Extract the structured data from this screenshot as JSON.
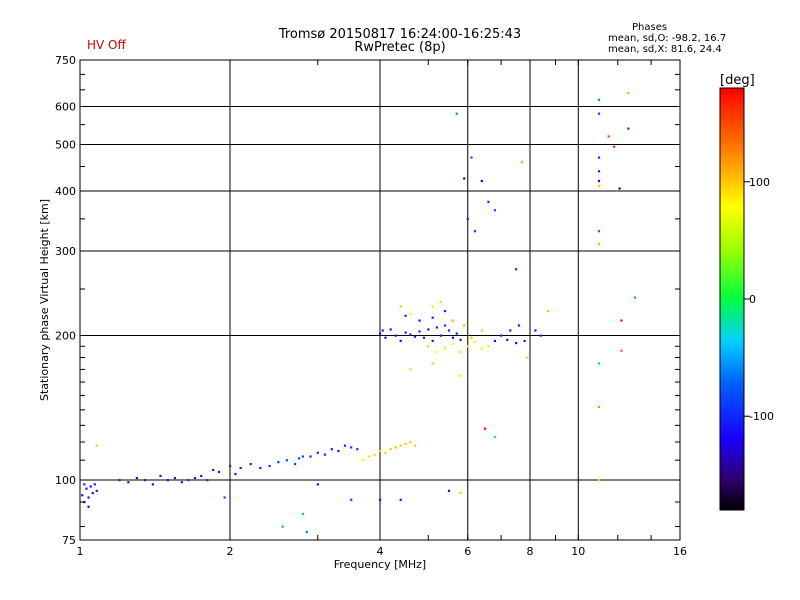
{
  "header": {
    "title_line1": "Tromsø 20150817 16:24:00-16:25:43",
    "title_line2": "RwPretec (8p)",
    "hv_status": "HV Off",
    "phase_heading": "Phases",
    "phase_o": "mean, sd,O: -98.2, 16.7",
    "phase_x": "mean, sd,X:  81.6, 24.4"
  },
  "colorbar": {
    "unit": "[deg]",
    "range": [
      -180,
      180
    ],
    "ticks": [
      {
        "value": 100,
        "label": "100"
      },
      {
        "value": 0,
        "label": "0"
      },
      {
        "value": -100,
        "label": "-100"
      }
    ]
  },
  "chart_data": {
    "type": "scatter",
    "title": "Tromsø 20150817 16:24:00-16:25:43",
    "subtitle": "RwPretec (8p)",
    "xlabel": "Frequency [MHz]",
    "ylabel": "Stationary phase Virtual Height [km]",
    "x_scale": "log",
    "y_scale": "log",
    "xlim": [
      1,
      16
    ],
    "ylim": [
      75,
      750
    ],
    "grid": true,
    "x_ticks": [
      {
        "value": 1,
        "label": "1"
      },
      {
        "value": 2,
        "label": "2"
      },
      {
        "value": 4,
        "label": "4"
      },
      {
        "value": 6,
        "label": "6"
      },
      {
        "value": 8,
        "label": "8"
      },
      {
        "value": 10,
        "label": "10"
      },
      {
        "value": 16,
        "label": "16"
      }
    ],
    "x_grid": [
      2,
      4,
      6,
      8,
      10
    ],
    "y_ticks": [
      {
        "value": 75,
        "label": "75"
      },
      {
        "value": 100,
        "label": "100"
      },
      {
        "value": 200,
        "label": "200"
      },
      {
        "value": 300,
        "label": "300"
      },
      {
        "value": 400,
        "label": "400"
      },
      {
        "value": 500,
        "label": "500"
      },
      {
        "value": 600,
        "label": "600"
      },
      {
        "value": 750,
        "label": "750"
      }
    ],
    "y_grid": [
      100,
      200,
      300,
      400,
      500,
      600
    ],
    "color_key": "phase [deg]",
    "points": [
      [
        1.01,
        93,
        -110
      ],
      [
        1.02,
        90,
        -115
      ],
      [
        1.03,
        96,
        -105
      ],
      [
        1.04,
        92,
        -112
      ],
      [
        1.05,
        97,
        -108
      ],
      [
        1.06,
        94,
        -118
      ],
      [
        1.07,
        98,
        -104
      ],
      [
        1.08,
        95,
        -110
      ],
      [
        1.02,
        98,
        -100
      ],
      [
        1.04,
        88,
        -115
      ],
      [
        1.08,
        118,
        100
      ],
      [
        1.2,
        100,
        -104
      ],
      [
        1.25,
        99,
        -110
      ],
      [
        1.3,
        101,
        -108
      ],
      [
        1.35,
        100,
        -112
      ],
      [
        1.4,
        98,
        -105
      ],
      [
        1.45,
        102,
        -108
      ],
      [
        1.5,
        100,
        -110
      ],
      [
        1.55,
        101,
        -106
      ],
      [
        1.6,
        99,
        -112
      ],
      [
        1.65,
        100,
        -104
      ],
      [
        1.7,
        101,
        -108
      ],
      [
        1.75,
        102,
        -110
      ],
      [
        1.8,
        100,
        -100
      ],
      [
        1.85,
        105,
        -112
      ],
      [
        1.9,
        104,
        -108
      ],
      [
        2.0,
        107,
        -105
      ],
      [
        2.05,
        103,
        -108
      ],
      [
        2.1,
        106,
        -110
      ],
      [
        2.2,
        108,
        -103
      ],
      [
        2.3,
        106,
        -108
      ],
      [
        2.4,
        107,
        -95
      ],
      [
        2.5,
        109,
        -90
      ],
      [
        2.6,
        110,
        -85
      ],
      [
        2.7,
        108,
        -80
      ],
      [
        2.75,
        111,
        -80
      ],
      [
        2.8,
        112,
        -85
      ],
      [
        2.9,
        112,
        -100
      ],
      [
        3.0,
        114,
        -105
      ],
      [
        3.1,
        113,
        -100
      ],
      [
        3.2,
        116,
        -105
      ],
      [
        3.3,
        115,
        -108
      ],
      [
        3.4,
        118,
        -102
      ],
      [
        3.5,
        117,
        -95
      ],
      [
        3.6,
        116,
        -102
      ],
      [
        3.7,
        110,
        80
      ],
      [
        3.8,
        112,
        90
      ],
      [
        3.9,
        113,
        95
      ],
      [
        4.0,
        115,
        100
      ],
      [
        4.1,
        114,
        98
      ],
      [
        4.2,
        116,
        100
      ],
      [
        4.3,
        117,
        102
      ],
      [
        4.4,
        118,
        99
      ],
      [
        4.5,
        119,
        101
      ],
      [
        4.6,
        120,
        100
      ],
      [
        4.7,
        118,
        98
      ],
      [
        1.95,
        92,
        -80
      ],
      [
        2.55,
        80,
        -50
      ],
      [
        2.8,
        85,
        -40
      ],
      [
        2.85,
        78,
        -60
      ],
      [
        3.0,
        98,
        -115
      ],
      [
        3.5,
        91,
        -90
      ],
      [
        4.0,
        91,
        -110
      ],
      [
        4.4,
        91,
        -112
      ],
      [
        5.5,
        95,
        -120
      ],
      [
        5.8,
        94,
        100
      ],
      [
        4.0,
        202,
        -108
      ],
      [
        4.05,
        205,
        -104
      ],
      [
        4.1,
        198,
        -110
      ],
      [
        4.2,
        206,
        -105
      ],
      [
        4.3,
        200,
        -108
      ],
      [
        4.4,
        195,
        -112
      ],
      [
        4.5,
        203,
        -110
      ],
      [
        4.6,
        201,
        -100
      ],
      [
        4.7,
        199,
        -108
      ],
      [
        4.8,
        204,
        -103
      ],
      [
        4.9,
        198,
        -108
      ],
      [
        5.0,
        206,
        -110
      ],
      [
        5.1,
        195,
        -112
      ],
      [
        5.2,
        208,
        -108
      ],
      [
        5.3,
        200,
        -105
      ],
      [
        5.4,
        210,
        -90
      ],
      [
        5.5,
        205,
        -100
      ],
      [
        5.6,
        198,
        -110
      ],
      [
        5.7,
        202,
        -108
      ],
      [
        5.8,
        196,
        -115
      ],
      [
        4.5,
        220,
        -104
      ],
      [
        4.8,
        215,
        -115
      ],
      [
        5.1,
        218,
        -108
      ],
      [
        5.4,
        225,
        -108
      ],
      [
        5.6,
        215,
        -105
      ],
      [
        4.4,
        230,
        100
      ],
      [
        4.6,
        222,
        80
      ],
      [
        5.0,
        190,
        95
      ],
      [
        5.2,
        185,
        80
      ],
      [
        5.4,
        188,
        60
      ],
      [
        5.6,
        192,
        75
      ],
      [
        5.8,
        185,
        90
      ],
      [
        6.0,
        190,
        85
      ],
      [
        6.2,
        194,
        80
      ],
      [
        6.4,
        188,
        70
      ],
      [
        5.1,
        230,
        90
      ],
      [
        5.3,
        235,
        95
      ],
      [
        5.6,
        215,
        100
      ],
      [
        5.9,
        210,
        105
      ],
      [
        6.1,
        198,
        100
      ],
      [
        6.4,
        205,
        95
      ],
      [
        6.6,
        190,
        60
      ],
      [
        6.8,
        195,
        -112
      ],
      [
        7.0,
        200,
        -108
      ],
      [
        7.3,
        205,
        -100
      ],
      [
        7.6,
        210,
        -104
      ],
      [
        7.8,
        195,
        -110
      ],
      [
        8.2,
        205,
        -108
      ],
      [
        8.4,
        200,
        -100
      ],
      [
        8.7,
        225,
        100
      ],
      [
        4.6,
        170,
        50
      ],
      [
        5.1,
        175,
        40
      ],
      [
        5.8,
        165,
        60
      ],
      [
        6.0,
        350,
        -100
      ],
      [
        6.2,
        330,
        -90
      ],
      [
        6.4,
        420,
        -115
      ],
      [
        6.6,
        380,
        -100
      ],
      [
        6.8,
        365,
        -80
      ],
      [
        6.1,
        470,
        -80
      ],
      [
        5.7,
        580,
        -60
      ],
      [
        5.9,
        425,
        -120
      ],
      [
        7.5,
        275,
        -100
      ],
      [
        7.7,
        460,
        110
      ],
      [
        7.2,
        196,
        -108
      ],
      [
        7.5,
        193,
        -112
      ],
      [
        7.9,
        180,
        40
      ],
      [
        6.5,
        128,
        180
      ],
      [
        6.8,
        123,
        0
      ],
      [
        11.0,
        620,
        -60
      ],
      [
        11.0,
        580,
        -90
      ],
      [
        11.0,
        470,
        -100
      ],
      [
        11.0,
        440,
        -105
      ],
      [
        11.0,
        420,
        -120
      ],
      [
        11.0,
        410,
        100
      ],
      [
        11.0,
        330,
        -70
      ],
      [
        11.0,
        310,
        110
      ],
      [
        11.0,
        175,
        -40
      ],
      [
        11.0,
        142,
        120
      ],
      [
        11.0,
        100,
        50
      ],
      [
        11.5,
        520,
        150
      ],
      [
        11.8,
        495,
        160
      ],
      [
        12.1,
        405,
        -150
      ],
      [
        12.6,
        540,
        -100
      ],
      [
        12.6,
        640,
        110
      ],
      [
        13.0,
        240,
        -50
      ],
      [
        12.2,
        215,
        170
      ],
      [
        12.2,
        186,
        140
      ]
    ]
  }
}
